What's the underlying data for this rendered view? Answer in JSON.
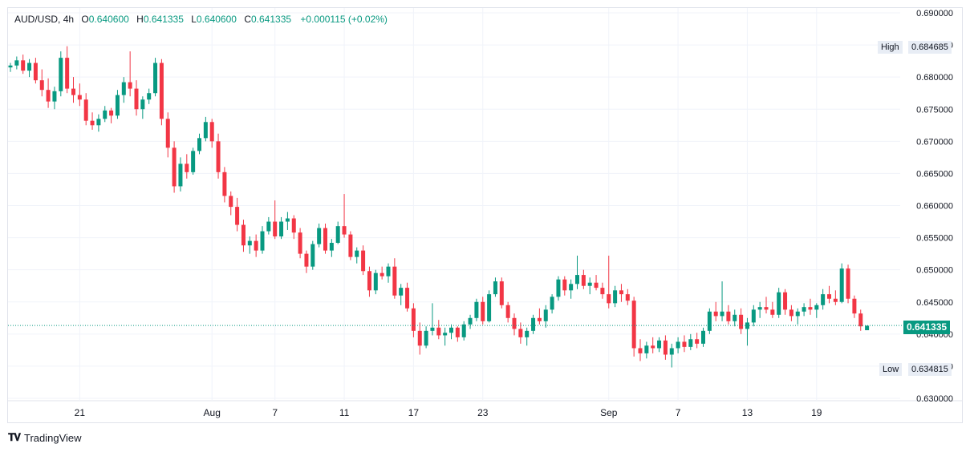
{
  "header": {
    "symbol": "AUD/USD",
    "interval": "4h",
    "open_label": "O",
    "open": "0.640600",
    "high_label": "H",
    "high": "0.641335",
    "low_label": "L",
    "low": "0.640600",
    "close_label": "C",
    "close": "0.641335",
    "change": "+0.000115 (+0.02%)"
  },
  "markers": {
    "high_label": "High",
    "high_value": "0.684685",
    "low_label": "Low",
    "low_value": "0.634815",
    "last_value": "0.641335"
  },
  "footer": {
    "brand": "TradingView"
  },
  "colors": {
    "up": "#089981",
    "down": "#f23645",
    "grid": "#f0f3fa",
    "axis_text": "#131722"
  },
  "chart_data": {
    "type": "candlestick",
    "ylim": [
      0.63,
      0.69
    ],
    "y_ticks": [
      "0.690000",
      "0.685000",
      "0.680000",
      "0.675000",
      "0.670000",
      "0.665000",
      "0.660000",
      "0.655000",
      "0.650000",
      "0.645000",
      "0.640000",
      "0.635000",
      "0.630000"
    ],
    "x_ticks": [
      {
        "label": "21",
        "bar": 11
      },
      {
        "label": "Aug",
        "bar": 32
      },
      {
        "label": "7",
        "bar": 42
      },
      {
        "label": "11",
        "bar": 53
      },
      {
        "label": "17",
        "bar": 64
      },
      {
        "label": "23",
        "bar": 75
      },
      {
        "label": "Sep",
        "bar": 95
      },
      {
        "label": "7",
        "bar": 106
      },
      {
        "label": "13",
        "bar": 117
      },
      {
        "label": "19",
        "bar": 128
      }
    ],
    "candles": [
      [
        0.6815,
        0.6822,
        0.6808,
        0.6818
      ],
      [
        0.6818,
        0.6832,
        0.6812,
        0.6826
      ],
      [
        0.6826,
        0.6835,
        0.6805,
        0.681
      ],
      [
        0.681,
        0.6828,
        0.68,
        0.6822
      ],
      [
        0.6822,
        0.683,
        0.679,
        0.6795
      ],
      [
        0.6795,
        0.6812,
        0.677,
        0.678
      ],
      [
        0.678,
        0.6798,
        0.6752,
        0.6762
      ],
      [
        0.6762,
        0.6785,
        0.675,
        0.6778
      ],
      [
        0.6778,
        0.684,
        0.677,
        0.683
      ],
      [
        0.683,
        0.6848,
        0.6775,
        0.6782
      ],
      [
        0.6782,
        0.68,
        0.676,
        0.6772
      ],
      [
        0.6772,
        0.679,
        0.6755,
        0.6765
      ],
      [
        0.6765,
        0.6775,
        0.6725,
        0.6732
      ],
      [
        0.6732,
        0.6745,
        0.6718,
        0.6725
      ],
      [
        0.6725,
        0.6742,
        0.6715,
        0.6735
      ],
      [
        0.6735,
        0.6755,
        0.673,
        0.6748
      ],
      [
        0.6748,
        0.6752,
        0.6728,
        0.674
      ],
      [
        0.674,
        0.678,
        0.6735,
        0.6772
      ],
      [
        0.6772,
        0.68,
        0.676,
        0.6792
      ],
      [
        0.6792,
        0.684,
        0.677,
        0.6782
      ],
      [
        0.6782,
        0.6795,
        0.674,
        0.675
      ],
      [
        0.675,
        0.677,
        0.6735,
        0.6765
      ],
      [
        0.6765,
        0.6782,
        0.6758,
        0.6775
      ],
      [
        0.6775,
        0.683,
        0.677,
        0.6822
      ],
      [
        0.6822,
        0.6828,
        0.6725,
        0.6735
      ],
      [
        0.6735,
        0.6745,
        0.6675,
        0.669
      ],
      [
        0.669,
        0.67,
        0.662,
        0.663
      ],
      [
        0.663,
        0.6675,
        0.6622,
        0.6665
      ],
      [
        0.6665,
        0.668,
        0.6642,
        0.6652
      ],
      [
        0.6652,
        0.669,
        0.6648,
        0.6685
      ],
      [
        0.6685,
        0.6712,
        0.668,
        0.6705
      ],
      [
        0.6705,
        0.6738,
        0.67,
        0.673
      ],
      [
        0.673,
        0.6735,
        0.669,
        0.67
      ],
      [
        0.67,
        0.6712,
        0.6642,
        0.6652
      ],
      [
        0.6652,
        0.666,
        0.6605,
        0.6615
      ],
      [
        0.6615,
        0.6622,
        0.6585,
        0.6598
      ],
      [
        0.6598,
        0.6612,
        0.656,
        0.657
      ],
      [
        0.657,
        0.6578,
        0.6528,
        0.6538
      ],
      [
        0.6538,
        0.6552,
        0.6525,
        0.6545
      ],
      [
        0.6545,
        0.6555,
        0.652,
        0.653
      ],
      [
        0.653,
        0.6568,
        0.6525,
        0.656
      ],
      [
        0.656,
        0.6582,
        0.6555,
        0.6575
      ],
      [
        0.6575,
        0.6608,
        0.6548,
        0.6552
      ],
      [
        0.6552,
        0.6582,
        0.6548,
        0.6575
      ],
      [
        0.6575,
        0.659,
        0.6562,
        0.658
      ],
      [
        0.658,
        0.6585,
        0.6548,
        0.6558
      ],
      [
        0.6558,
        0.6565,
        0.6518,
        0.6525
      ],
      [
        0.6525,
        0.653,
        0.6495,
        0.6505
      ],
      [
        0.6505,
        0.6545,
        0.65,
        0.654
      ],
      [
        0.654,
        0.6572,
        0.6535,
        0.6565
      ],
      [
        0.6565,
        0.6572,
        0.6525,
        0.653
      ],
      [
        0.653,
        0.6548,
        0.652,
        0.6542
      ],
      [
        0.6542,
        0.6575,
        0.654,
        0.6568
      ],
      [
        0.6568,
        0.6618,
        0.655,
        0.6555
      ],
      [
        0.6555,
        0.656,
        0.6515,
        0.652
      ],
      [
        0.652,
        0.6535,
        0.651,
        0.653
      ],
      [
        0.653,
        0.6538,
        0.6492,
        0.6498
      ],
      [
        0.6498,
        0.6505,
        0.6458,
        0.6468
      ],
      [
        0.6468,
        0.65,
        0.6462,
        0.6495
      ],
      [
        0.6495,
        0.6505,
        0.6485,
        0.649
      ],
      [
        0.649,
        0.651,
        0.648,
        0.6505
      ],
      [
        0.6505,
        0.6518,
        0.6455,
        0.646
      ],
      [
        0.646,
        0.6478,
        0.6445,
        0.6472
      ],
      [
        0.6472,
        0.648,
        0.6435,
        0.644
      ],
      [
        0.644,
        0.6448,
        0.6395,
        0.6405
      ],
      [
        0.6405,
        0.6418,
        0.6368,
        0.6382
      ],
      [
        0.6382,
        0.6412,
        0.6378,
        0.6405
      ],
      [
        0.6405,
        0.6448,
        0.6398,
        0.641
      ],
      [
        0.641,
        0.6422,
        0.6392,
        0.6398
      ],
      [
        0.6398,
        0.641,
        0.6382,
        0.6402
      ],
      [
        0.6402,
        0.6415,
        0.6392,
        0.641
      ],
      [
        0.641,
        0.6412,
        0.6388,
        0.6395
      ],
      [
        0.6395,
        0.642,
        0.639,
        0.6415
      ],
      [
        0.6415,
        0.643,
        0.6408,
        0.6425
      ],
      [
        0.6425,
        0.6455,
        0.642,
        0.645
      ],
      [
        0.645,
        0.6458,
        0.6415,
        0.642
      ],
      [
        0.642,
        0.6468,
        0.6418,
        0.6462
      ],
      [
        0.6462,
        0.6488,
        0.6458,
        0.6482
      ],
      [
        0.6482,
        0.6488,
        0.644,
        0.6445
      ],
      [
        0.6445,
        0.645,
        0.6418,
        0.6425
      ],
      [
        0.6425,
        0.6432,
        0.6398,
        0.6408
      ],
      [
        0.6408,
        0.6418,
        0.6385,
        0.6395
      ],
      [
        0.6395,
        0.641,
        0.6382,
        0.6405
      ],
      [
        0.6405,
        0.643,
        0.64,
        0.6425
      ],
      [
        0.6425,
        0.644,
        0.6415,
        0.642
      ],
      [
        0.642,
        0.6445,
        0.641,
        0.6438
      ],
      [
        0.6438,
        0.6462,
        0.6432,
        0.6458
      ],
      [
        0.6458,
        0.649,
        0.6452,
        0.6485
      ],
      [
        0.6485,
        0.649,
        0.646,
        0.6468
      ],
      [
        0.6468,
        0.6485,
        0.6455,
        0.6478
      ],
      [
        0.6478,
        0.6522,
        0.647,
        0.6492
      ],
      [
        0.6492,
        0.65,
        0.647,
        0.6475
      ],
      [
        0.6475,
        0.6488,
        0.6462,
        0.648
      ],
      [
        0.648,
        0.6492,
        0.6468,
        0.6472
      ],
      [
        0.6472,
        0.648,
        0.6455,
        0.6462
      ],
      [
        0.6462,
        0.6522,
        0.644,
        0.6448
      ],
      [
        0.6448,
        0.6475,
        0.6442,
        0.6468
      ],
      [
        0.6468,
        0.6478,
        0.645,
        0.6462
      ],
      [
        0.6462,
        0.647,
        0.6445,
        0.6452
      ],
      [
        0.6452,
        0.6458,
        0.6365,
        0.6378
      ],
      [
        0.6378,
        0.6392,
        0.6358,
        0.637
      ],
      [
        0.637,
        0.6388,
        0.6362,
        0.6382
      ],
      [
        0.6382,
        0.6395,
        0.637,
        0.6378
      ],
      [
        0.6378,
        0.6395,
        0.6372,
        0.639
      ],
      [
        0.639,
        0.6398,
        0.636,
        0.6368
      ],
      [
        0.6368,
        0.6385,
        0.6348,
        0.6378
      ],
      [
        0.6378,
        0.6395,
        0.637,
        0.6388
      ],
      [
        0.6388,
        0.6398,
        0.6372,
        0.638
      ],
      [
        0.638,
        0.64,
        0.6375,
        0.6392
      ],
      [
        0.6392,
        0.6402,
        0.6378,
        0.6385
      ],
      [
        0.6385,
        0.641,
        0.638,
        0.6405
      ],
      [
        0.6405,
        0.644,
        0.64,
        0.6435
      ],
      [
        0.6435,
        0.645,
        0.642,
        0.6428
      ],
      [
        0.6428,
        0.6482,
        0.642,
        0.6435
      ],
      [
        0.6435,
        0.6445,
        0.6415,
        0.642
      ],
      [
        0.642,
        0.6438,
        0.6412,
        0.643
      ],
      [
        0.643,
        0.644,
        0.64,
        0.6408
      ],
      [
        0.6408,
        0.6425,
        0.6382,
        0.6418
      ],
      [
        0.6418,
        0.6445,
        0.6412,
        0.6438
      ],
      [
        0.6438,
        0.645,
        0.6425,
        0.6442
      ],
      [
        0.6442,
        0.6458,
        0.6432,
        0.6438
      ],
      [
        0.6438,
        0.645,
        0.6425,
        0.643
      ],
      [
        0.643,
        0.6472,
        0.6425,
        0.6465
      ],
      [
        0.6465,
        0.647,
        0.643,
        0.6438
      ],
      [
        0.6438,
        0.6445,
        0.642,
        0.6428
      ],
      [
        0.6428,
        0.644,
        0.6415,
        0.6435
      ],
      [
        0.6435,
        0.6448,
        0.6428,
        0.6442
      ],
      [
        0.6442,
        0.6455,
        0.643,
        0.6438
      ],
      [
        0.6438,
        0.6448,
        0.6425,
        0.6445
      ],
      [
        0.6445,
        0.647,
        0.6438,
        0.6462
      ],
      [
        0.6462,
        0.6475,
        0.6448,
        0.6455
      ],
      [
        0.6455,
        0.6468,
        0.6445,
        0.645
      ],
      [
        0.645,
        0.651,
        0.6448,
        0.6502
      ],
      [
        0.6502,
        0.6508,
        0.6448,
        0.6455
      ],
      [
        0.6455,
        0.646,
        0.6425,
        0.6432
      ],
      [
        0.6432,
        0.6438,
        0.6405,
        0.6412
      ],
      [
        0.6406,
        0.6413,
        0.6406,
        0.6413
      ]
    ]
  }
}
